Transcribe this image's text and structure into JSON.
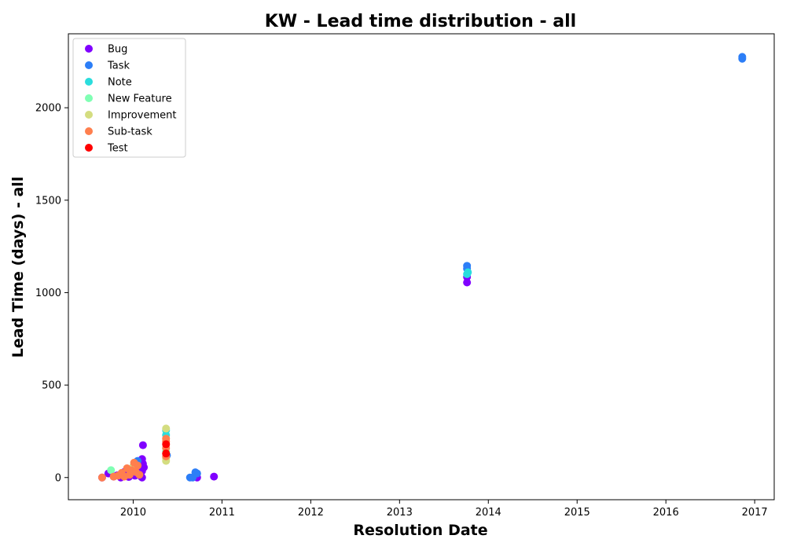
{
  "chart_data": {
    "type": "scatter",
    "title": "KW - Lead time distribution - all",
    "xlabel": "Resolution Date",
    "ylabel": "Lead Time (days) - all",
    "xlim": [
      2009.27,
      2017.22
    ],
    "ylim": [
      -120,
      2400
    ],
    "x_ticks": [
      2010,
      2011,
      2012,
      2013,
      2014,
      2015,
      2016,
      2017
    ],
    "y_ticks": [
      0,
      500,
      1000,
      1500,
      2000
    ],
    "grid": false,
    "legend_position": "top-left",
    "series": [
      {
        "name": "Bug",
        "color": "#8000ff",
        "points": [
          [
            2009.65,
            0
          ],
          [
            2009.72,
            22
          ],
          [
            2009.78,
            5
          ],
          [
            2009.82,
            12
          ],
          [
            2009.86,
            0
          ],
          [
            2009.9,
            30
          ],
          [
            2009.95,
            3
          ],
          [
            2010.0,
            45
          ],
          [
            2010.02,
            10
          ],
          [
            2010.05,
            60
          ],
          [
            2010.07,
            20
          ],
          [
            2010.09,
            5
          ],
          [
            2010.1,
            35
          ],
          [
            2010.1,
            100
          ],
          [
            2010.11,
            75
          ],
          [
            2010.12,
            55
          ],
          [
            2010.11,
            175
          ],
          [
            2010.1,
            0
          ],
          [
            2010.72,
            0
          ],
          [
            2010.91,
            5
          ],
          [
            2013.76,
            1055
          ],
          [
            2013.76,
            1085
          ]
        ]
      },
      {
        "name": "Task",
        "color": "#2c7ef7",
        "points": [
          [
            2010.05,
            90
          ],
          [
            2010.02,
            70
          ],
          [
            2010.38,
            120
          ],
          [
            2010.64,
            0
          ],
          [
            2010.67,
            0
          ],
          [
            2010.7,
            28
          ],
          [
            2010.72,
            22
          ],
          [
            2013.76,
            1130
          ],
          [
            2013.76,
            1145
          ],
          [
            2016.86,
            2265
          ],
          [
            2016.86,
            2275
          ]
        ]
      },
      {
        "name": "Note",
        "color": "#2adddd",
        "points": [
          [
            2010.37,
            230
          ],
          [
            2010.37,
            255
          ],
          [
            2013.76,
            1100
          ],
          [
            2013.77,
            1110
          ]
        ]
      },
      {
        "name": "New Feature",
        "color": "#80ffb4",
        "points": [
          [
            2009.75,
            40
          ],
          [
            2010.37,
            140
          ]
        ]
      },
      {
        "name": "Improvement",
        "color": "#d4dd80",
        "points": [
          [
            2010.37,
            265
          ],
          [
            2010.37,
            90
          ],
          [
            2010.37,
            105
          ],
          [
            2010.0,
            60
          ]
        ]
      },
      {
        "name": "Sub-task",
        "color": "#ff7f4e",
        "points": [
          [
            2009.65,
            0
          ],
          [
            2009.78,
            5
          ],
          [
            2009.83,
            10
          ],
          [
            2009.87,
            25
          ],
          [
            2009.9,
            5
          ],
          [
            2009.93,
            50
          ],
          [
            2009.96,
            15
          ],
          [
            2009.98,
            40
          ],
          [
            2010.01,
            80
          ],
          [
            2010.03,
            30
          ],
          [
            2010.05,
            65
          ],
          [
            2010.07,
            15
          ],
          [
            2010.37,
            210
          ],
          [
            2010.37,
            195
          ],
          [
            2010.37,
            160
          ],
          [
            2010.37,
            115
          ]
        ]
      },
      {
        "name": "Test",
        "color": "#ff0000",
        "points": [
          [
            2010.37,
            180
          ],
          [
            2010.37,
            130
          ]
        ]
      }
    ]
  }
}
